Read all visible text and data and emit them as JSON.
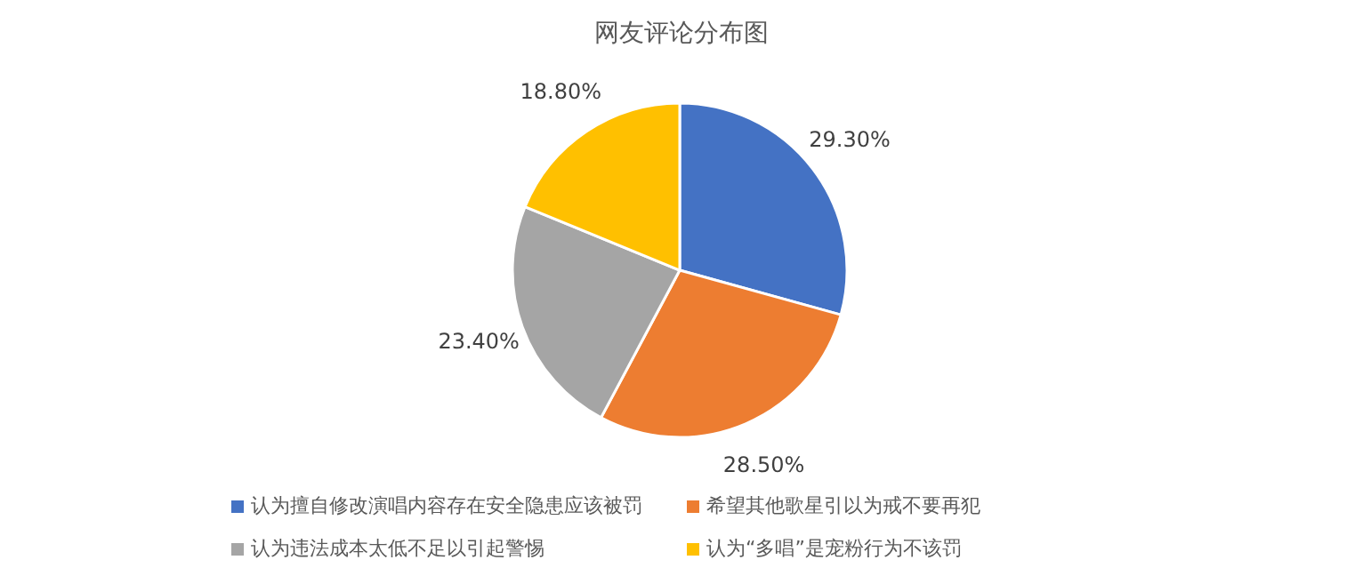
{
  "chart_data": {
    "type": "pie",
    "title": "网友评论分布图",
    "categories": [
      "认为擅自修改演唱内容存在安全隐患应该被罚",
      "希望其他歌星引以为戒不要再犯",
      "认为违法成本太低不足以引起警惕",
      "认为“多唱”是宠粉行为不该罚"
    ],
    "values": [
      29.3,
      28.5,
      23.4,
      18.8
    ],
    "value_labels": [
      "29.30%",
      "28.50%",
      "23.40%",
      "18.80%"
    ],
    "colors": [
      "#4472c4",
      "#ed7d31",
      "#a5a5a5",
      "#ffc000"
    ],
    "legend": "bottom"
  }
}
